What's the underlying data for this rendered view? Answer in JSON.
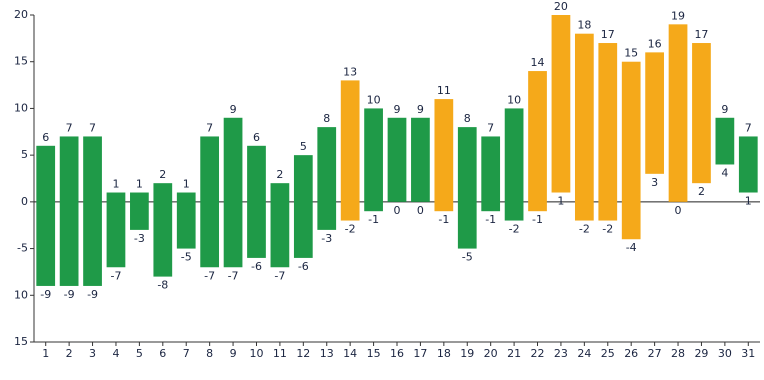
{
  "chart_data": {
    "type": "range_bar",
    "categories": [
      "1",
      "2",
      "3",
      "4",
      "5",
      "6",
      "7",
      "8",
      "9",
      "10",
      "11",
      "12",
      "13",
      "14",
      "15",
      "16",
      "17",
      "18",
      "19",
      "20",
      "21",
      "22",
      "23",
      "24",
      "25",
      "26",
      "27",
      "28",
      "29",
      "30",
      "31"
    ],
    "highs": [
      6,
      7,
      7,
      1,
      1,
      2,
      1,
      7,
      9,
      6,
      2,
      5,
      8,
      13,
      10,
      9,
      9,
      11,
      8,
      7,
      10,
      14,
      20,
      18,
      17,
      15,
      16,
      19,
      17,
      9,
      7
    ],
    "lows": [
      -9,
      -9,
      -9,
      -7,
      -3,
      -8,
      -5,
      -7,
      -7,
      -6,
      -7,
      -6,
      -3,
      -2,
      -1,
      0,
      0,
      -1,
      -5,
      -1,
      -2,
      -1,
      1,
      -2,
      -2,
      -4,
      3,
      0,
      2,
      4,
      1
    ],
    "colors": [
      "#1f9a48",
      "#1f9a48",
      "#1f9a48",
      "#1f9a48",
      "#1f9a48",
      "#1f9a48",
      "#1f9a48",
      "#1f9a48",
      "#1f9a48",
      "#1f9a48",
      "#1f9a48",
      "#1f9a48",
      "#1f9a48",
      "#f5a91a",
      "#1f9a48",
      "#1f9a48",
      "#1f9a48",
      "#f5a91a",
      "#1f9a48",
      "#1f9a48",
      "#1f9a48",
      "#f5a91a",
      "#f5a91a",
      "#f5a91a",
      "#f5a91a",
      "#f5a91a",
      "#f5a91a",
      "#f5a91a",
      "#f5a91a",
      "#1f9a48",
      "#1f9a48"
    ],
    "ylim": [
      -15,
      20
    ],
    "yticks": [
      20,
      15,
      10,
      5,
      0,
      -5,
      {
        "value": -10,
        "label": "10"
      },
      {
        "value": -15,
        "label": "15"
      }
    ],
    "zero_line": true
  }
}
